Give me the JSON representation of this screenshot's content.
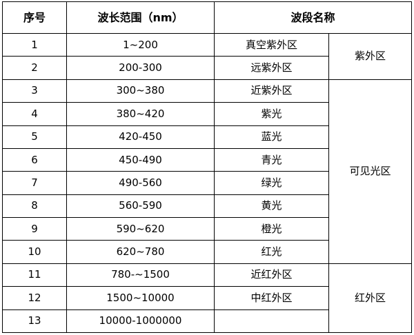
{
  "header": {
    "seq": "序号",
    "range": "波长范围（nm）",
    "name": "波段名称"
  },
  "rows": [
    {
      "seq": "1",
      "range": "1~200",
      "name": "真空紫外区"
    },
    {
      "seq": "2",
      "range": "200-300",
      "name": "远紫外区"
    },
    {
      "seq": "3",
      "range": "300~380",
      "name": "近紫外区"
    },
    {
      "seq": "4",
      "range": "380~420",
      "name": "紫光"
    },
    {
      "seq": "5",
      "range": "420-450",
      "name": "蓝光"
    },
    {
      "seq": "6",
      "range": "450-490",
      "name": "青光"
    },
    {
      "seq": "7",
      "range": "490-560",
      "name": "绿光"
    },
    {
      "seq": "8",
      "range": "560-590",
      "name": "黄光"
    },
    {
      "seq": "9",
      "range": "590~620",
      "name": "橙光"
    },
    {
      "seq": "10",
      "range": "620~780",
      "name": "红光"
    },
    {
      "seq": "11",
      "range": "780-~1500",
      "name": "近红外区"
    },
    {
      "seq": "12",
      "range": "1500~10000",
      "name": "中红外区"
    },
    {
      "seq": "13",
      "range": "10000-1000000",
      "name": ""
    }
  ],
  "regions": {
    "uv": "紫外区",
    "visible": "可见光区",
    "ir": "红外区"
  }
}
